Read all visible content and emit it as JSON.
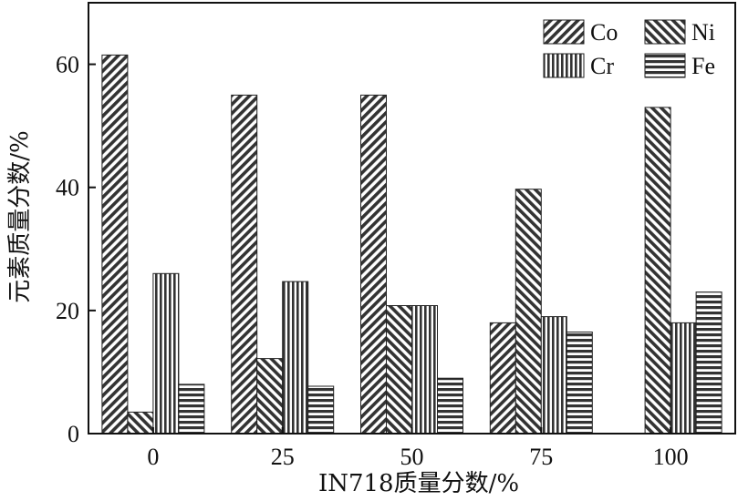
{
  "chart_data": {
    "type": "bar",
    "categories": [
      "0",
      "25",
      "50",
      "75",
      "100"
    ],
    "series": [
      {
        "name": "Co",
        "values": [
          61.5,
          55.0,
          55.0,
          18.0,
          0
        ],
        "color": "#333333",
        "pattern": "hatch-ne"
      },
      {
        "name": "Ni",
        "values": [
          3.5,
          12.2,
          20.8,
          39.7,
          53.0
        ],
        "color": "#333333",
        "pattern": "hatch-nw"
      },
      {
        "name": "Cr",
        "values": [
          26.0,
          24.7,
          20.8,
          19.0,
          18.0
        ],
        "color": "#333333",
        "pattern": "vertical-lines"
      },
      {
        "name": "Fe",
        "values": [
          8.0,
          7.7,
          9.0,
          16.5,
          23.0
        ],
        "color": "#333333",
        "pattern": "horizontal-lines"
      }
    ],
    "xlabel": "IN718质量分数/%",
    "ylabel": "元素质量分数/%",
    "ylim": [
      0,
      70
    ],
    "yticks": [
      0,
      20,
      40,
      60
    ],
    "legend_position": "top-right",
    "legend_columns": 2,
    "grid": false
  }
}
